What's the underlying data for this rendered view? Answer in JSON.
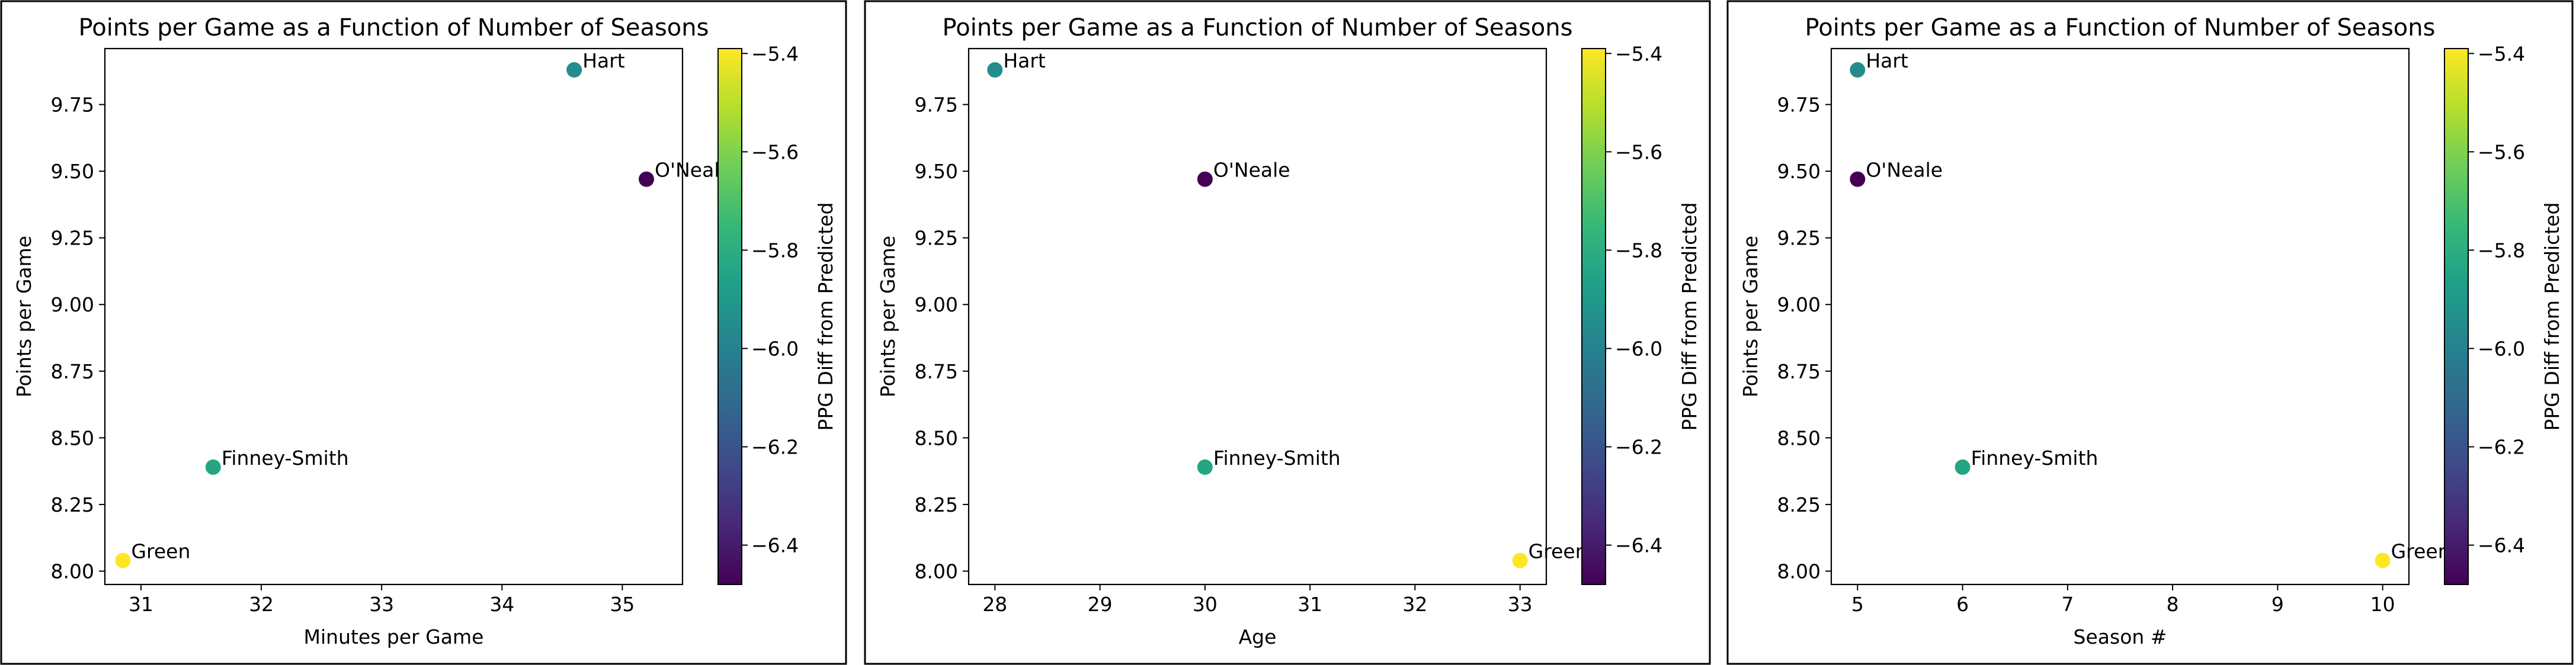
{
  "chart_data": [
    {
      "type": "scatter",
      "title": "Points per Game as a Function of Number of Seasons",
      "xlabel": "Minutes per Game",
      "ylabel": "Points per Game",
      "colorbar_label": "PPG Diff from Predicted",
      "xlim": [
        30.7,
        35.5
      ],
      "ylim": [
        7.95,
        9.96
      ],
      "xticks": [
        31,
        32,
        33,
        34,
        35
      ],
      "yticks": [
        8.0,
        8.25,
        8.5,
        8.75,
        9.0,
        9.25,
        9.5,
        9.75
      ],
      "clim": [
        -6.48,
        -5.39
      ],
      "cticks": [
        -6.4,
        -6.2,
        -6.0,
        -5.8,
        -5.6,
        -5.4
      ],
      "grid": false,
      "points": [
        {
          "label": "Hart",
          "x": 34.6,
          "y": 9.88,
          "c": -5.95
        },
        {
          "label": "O'Neale",
          "x": 35.2,
          "y": 9.47,
          "c": -6.48
        },
        {
          "label": "Finney-Smith",
          "x": 31.6,
          "y": 8.39,
          "c": -5.84
        },
        {
          "label": "Green",
          "x": 30.85,
          "y": 8.04,
          "c": -5.39
        }
      ]
    },
    {
      "type": "scatter",
      "title": "Points per Game as a Function of Number of Seasons",
      "xlabel": "Age",
      "ylabel": "Points per Game",
      "colorbar_label": "PPG Diff from Predicted",
      "xlim": [
        27.75,
        33.25
      ],
      "ylim": [
        7.95,
        9.96
      ],
      "xticks": [
        28,
        29,
        30,
        31,
        32,
        33
      ],
      "yticks": [
        8.0,
        8.25,
        8.5,
        8.75,
        9.0,
        9.25,
        9.5,
        9.75
      ],
      "clim": [
        -6.48,
        -5.39
      ],
      "cticks": [
        -6.4,
        -6.2,
        -6.0,
        -5.8,
        -5.6,
        -5.4
      ],
      "grid": false,
      "points": [
        {
          "label": "Hart",
          "x": 28,
          "y": 9.88,
          "c": -5.95
        },
        {
          "label": "O'Neale",
          "x": 30,
          "y": 9.47,
          "c": -6.48
        },
        {
          "label": "Finney-Smith",
          "x": 30,
          "y": 8.39,
          "c": -5.84
        },
        {
          "label": "Green",
          "x": 33,
          "y": 8.04,
          "c": -5.39
        }
      ]
    },
    {
      "type": "scatter",
      "title": "Points per Game as a Function of Number of Seasons",
      "xlabel": "Season #",
      "ylabel": "Points per Game",
      "colorbar_label": "PPG Diff from Predicted",
      "xlim": [
        4.75,
        10.25
      ],
      "ylim": [
        7.95,
        9.96
      ],
      "xticks": [
        5,
        6,
        7,
        8,
        9,
        10
      ],
      "yticks": [
        8.0,
        8.25,
        8.5,
        8.75,
        9.0,
        9.25,
        9.5,
        9.75
      ],
      "clim": [
        -6.48,
        -5.39
      ],
      "cticks": [
        -6.4,
        -6.2,
        -6.0,
        -5.8,
        -5.6,
        -5.4
      ],
      "grid": false,
      "points": [
        {
          "label": "Hart",
          "x": 5,
          "y": 9.88,
          "c": -5.95
        },
        {
          "label": "O'Neale",
          "x": 5,
          "y": 9.47,
          "c": -6.48
        },
        {
          "label": "Finney-Smith",
          "x": 6,
          "y": 8.39,
          "c": -5.84
        },
        {
          "label": "Green",
          "x": 10,
          "y": 8.04,
          "c": -5.39
        }
      ]
    }
  ]
}
